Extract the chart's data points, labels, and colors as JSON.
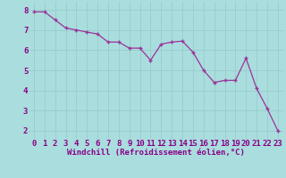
{
  "x": [
    0,
    1,
    2,
    3,
    4,
    5,
    6,
    7,
    8,
    9,
    10,
    11,
    12,
    13,
    14,
    15,
    16,
    17,
    18,
    19,
    20,
    21,
    22,
    23
  ],
  "y": [
    7.9,
    7.9,
    7.5,
    7.1,
    7.0,
    6.9,
    6.8,
    6.4,
    6.4,
    6.1,
    6.1,
    5.5,
    6.3,
    6.4,
    6.45,
    5.9,
    5.0,
    4.4,
    4.5,
    4.5,
    5.6,
    4.1,
    3.1,
    2.0
  ],
  "line_color": "#993399",
  "marker_color": "#993399",
  "bg_color": "#aadddd",
  "grid_color": "#99cccc",
  "xlabel": "Windchill (Refroidissement éolien,°C)",
  "ylabel_ticks": [
    2,
    3,
    4,
    5,
    6,
    7,
    8
  ],
  "xlim": [
    -0.5,
    23.5
  ],
  "ylim": [
    1.6,
    8.4
  ],
  "xlabel_fontsize": 6.5,
  "tick_fontsize": 6.5,
  "axes_label_color": "#880088"
}
